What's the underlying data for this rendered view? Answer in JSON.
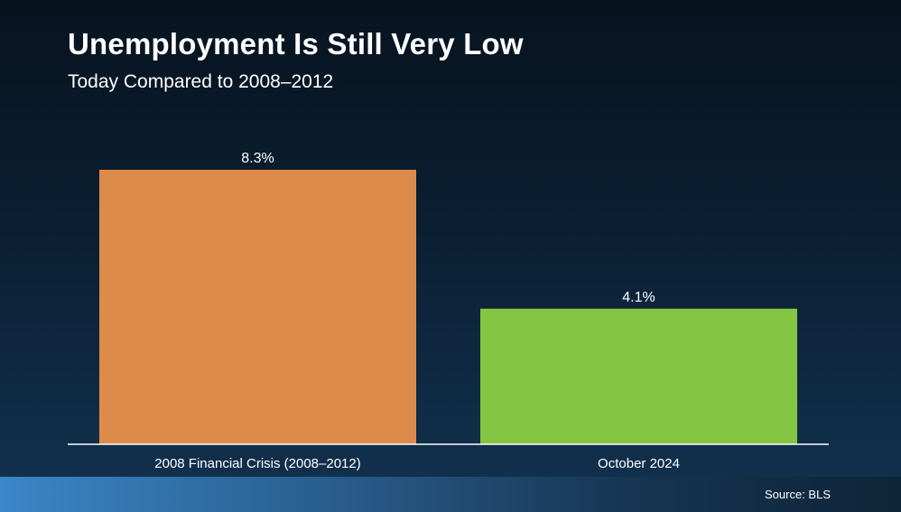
{
  "header": {
    "title": "Unemployment Is Still Very Low",
    "subtitle": "Today Compared to 2008–2012"
  },
  "footer": {
    "source": "Source: BLS"
  },
  "colors": {
    "crisis_bar": "#dd8b4b",
    "today_bar": "#84c642",
    "axis": "#ffffff",
    "text": "#ffffff"
  },
  "chart_data": {
    "type": "bar",
    "categories": [
      "2008 Financial Crisis (2008–2012)",
      "October 2024"
    ],
    "values": [
      8.3,
      4.1
    ],
    "data_labels": [
      "8.3%",
      "4.1%"
    ],
    "ylim": [
      0,
      8.3
    ],
    "grid": false
  }
}
